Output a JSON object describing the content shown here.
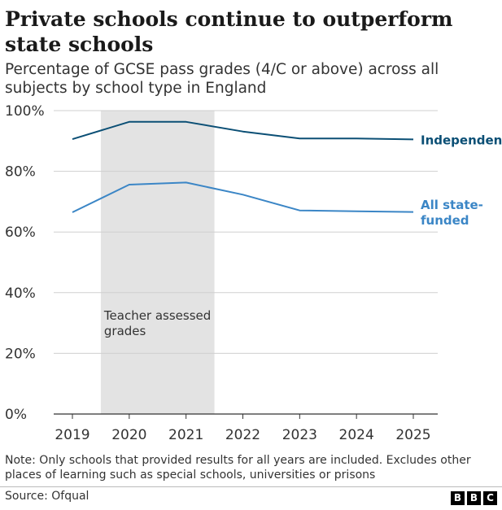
{
  "title": "Private schools continue to outperform state schools",
  "subtitle": "Percentage of GCSE pass grades (4/C or above) across all subjects by school type in England",
  "chart_data": {
    "type": "line",
    "x": [
      "2019",
      "2020",
      "2021",
      "2022",
      "2023",
      "2024",
      "2025"
    ],
    "ylim": [
      0,
      100
    ],
    "yticks": [
      "0%",
      "20%",
      "40%",
      "60%",
      "80%",
      "100%"
    ],
    "grid": true,
    "series": [
      {
        "name": "Independent",
        "color": "#0b4f75",
        "values": [
          90.6,
          96.3,
          96.3,
          93.1,
          90.8,
          90.8,
          90.5
        ]
      },
      {
        "name": "All state-funded",
        "label_lines": [
          "All state-",
          "funded"
        ],
        "color": "#3b86c6",
        "values": [
          66.5,
          75.6,
          76.3,
          72.3,
          67.1,
          66.8,
          66.6
        ]
      }
    ],
    "shaded_period": {
      "from": "2019.5",
      "to": "2021.5",
      "label_lines": [
        "Teacher assessed",
        "grades"
      ],
      "color": "#e3e3e3"
    }
  },
  "note": "Note: Only schools that provided results for all years are included. Excludes other places of learning such as special schools, universities or prisons",
  "source": "Source: Ofqual",
  "logo": [
    "B",
    "B",
    "C"
  ]
}
